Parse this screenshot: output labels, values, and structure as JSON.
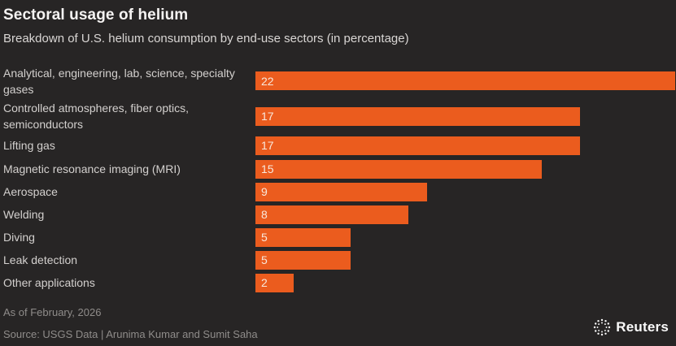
{
  "header": {
    "title": "Sectoral usage of helium",
    "subtitle": "Breakdown of U.S. helium consumption by end-use sectors (in percentage)"
  },
  "chart_data": {
    "type": "bar",
    "orientation": "horizontal",
    "title": "Sectoral usage of helium",
    "subtitle": "Breakdown of U.S. helium consumption by end-use sectors (in percentage)",
    "categories": [
      "Analytical, engineering, lab, science, specialty gases",
      "Controlled atmospheres, fiber optics, semiconductors",
      "Lifting gas",
      "Magnetic resonance imaging (MRI)",
      "Aerospace",
      "Welding",
      "Diving",
      "Leak detection",
      "Other applications"
    ],
    "values": [
      22,
      17,
      17,
      15,
      9,
      8,
      5,
      5,
      2
    ],
    "unit": "percent",
    "xlim": [
      0,
      22
    ],
    "grid": false,
    "value_labels": "inside-left",
    "bar_color": "#eb5c1e"
  },
  "footer": {
    "as_of": "As of February, 2026",
    "source": "Source: USGS Data | Arunima Kumar and Sumit Saha",
    "brand": "Reuters"
  },
  "colors": {
    "background": "#272525",
    "bar": "#eb5c1e",
    "title_text": "#f5f3f2",
    "body_text": "#d3d0ce",
    "muted_text": "#8f8c8a"
  }
}
